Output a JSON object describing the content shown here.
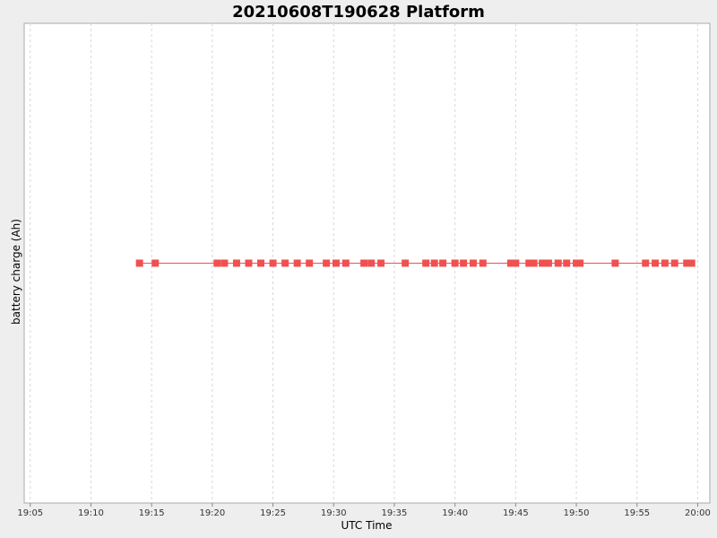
{
  "chart_data": {
    "type": "line",
    "title": "20210608T190628 Platform",
    "xlabel": "UTC Time",
    "ylabel": "battery charge (Ah)",
    "x_ticks": [
      "19:05",
      "19:10",
      "19:15",
      "19:20",
      "19:25",
      "19:30",
      "19:35",
      "19:40",
      "19:45",
      "19:50",
      "19:55",
      "20:00"
    ],
    "xlim": [
      "19:04.5",
      "20:01"
    ],
    "grid": true,
    "legend": "none",
    "series_color": "#f05050",
    "series": [
      {
        "x": [
          "19:14",
          "19:15.3",
          "19:20.4",
          "19:21",
          "19:22",
          "19:23",
          "19:24",
          "19:25",
          "19:26",
          "19:27",
          "19:28",
          "19:29.4",
          "19:30.2",
          "19:31",
          "19:32.5",
          "19:33.1",
          "19:33.9",
          "19:35.9",
          "19:37.6",
          "19:38.3",
          "19:39",
          "19:40",
          "19:40.7",
          "19:41.5",
          "19:42.3",
          "19:44.6",
          "19:45",
          "19:46.1",
          "19:46.5",
          "19:47.2",
          "19:47.7",
          "19:48.5",
          "19:49.2",
          "19:50",
          "19:50.3",
          "19:53.2",
          "19:55.7",
          "19:56.5",
          "19:57.3",
          "19:58.1",
          "19:59.1",
          "19:59.5"
        ],
        "y": [
          0,
          0,
          0,
          0,
          0,
          0,
          0,
          0,
          0,
          0,
          0,
          0,
          0,
          0,
          0,
          0,
          0,
          0,
          0,
          0,
          0,
          0,
          0,
          0,
          0,
          0,
          0,
          0,
          0,
          0,
          0,
          0,
          0,
          0,
          0,
          0,
          0,
          0,
          0,
          0,
          0,
          0
        ]
      }
    ]
  }
}
